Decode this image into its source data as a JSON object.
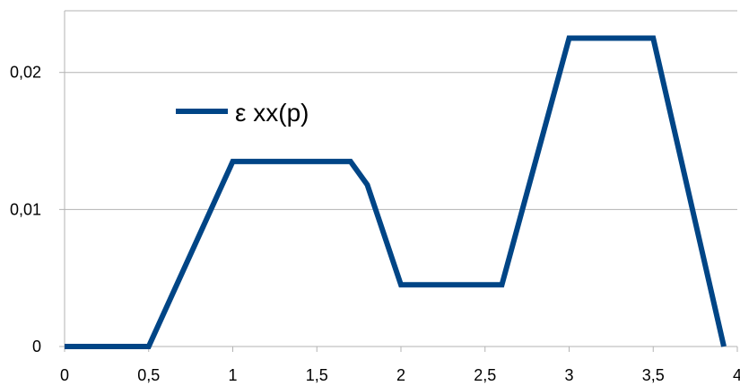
{
  "chart_data": {
    "type": "line",
    "title": "",
    "xlabel": "",
    "ylabel": "",
    "xlim": [
      0,
      4
    ],
    "ylim": [
      0,
      0.0245
    ],
    "grid": true,
    "legend_position": "top-left",
    "x_ticks": [
      "0",
      "0,5",
      "1",
      "1,5",
      "2",
      "2,5",
      "3",
      "3,5",
      "4"
    ],
    "x_tick_values": [
      0,
      0.5,
      1,
      1.5,
      2,
      2.5,
      3,
      3.5,
      4
    ],
    "y_ticks": [
      "0",
      "0,01",
      "0,02"
    ],
    "y_tick_values": [
      0,
      0.01,
      0.02
    ],
    "series": [
      {
        "name": "ε xx(p)",
        "color": "#004586",
        "x": [
          0,
          0.5,
          1.0,
          1.7,
          1.8,
          2.0,
          2.6,
          3.0,
          3.5,
          3.92
        ],
        "y": [
          0,
          0,
          0.0135,
          0.0135,
          0.0118,
          0.0045,
          0.0045,
          0.0225,
          0.0225,
          0
        ]
      }
    ]
  },
  "colors": {
    "grid": "#b3b3b3",
    "axis": "#b3b3b3",
    "series": "#004586"
  }
}
